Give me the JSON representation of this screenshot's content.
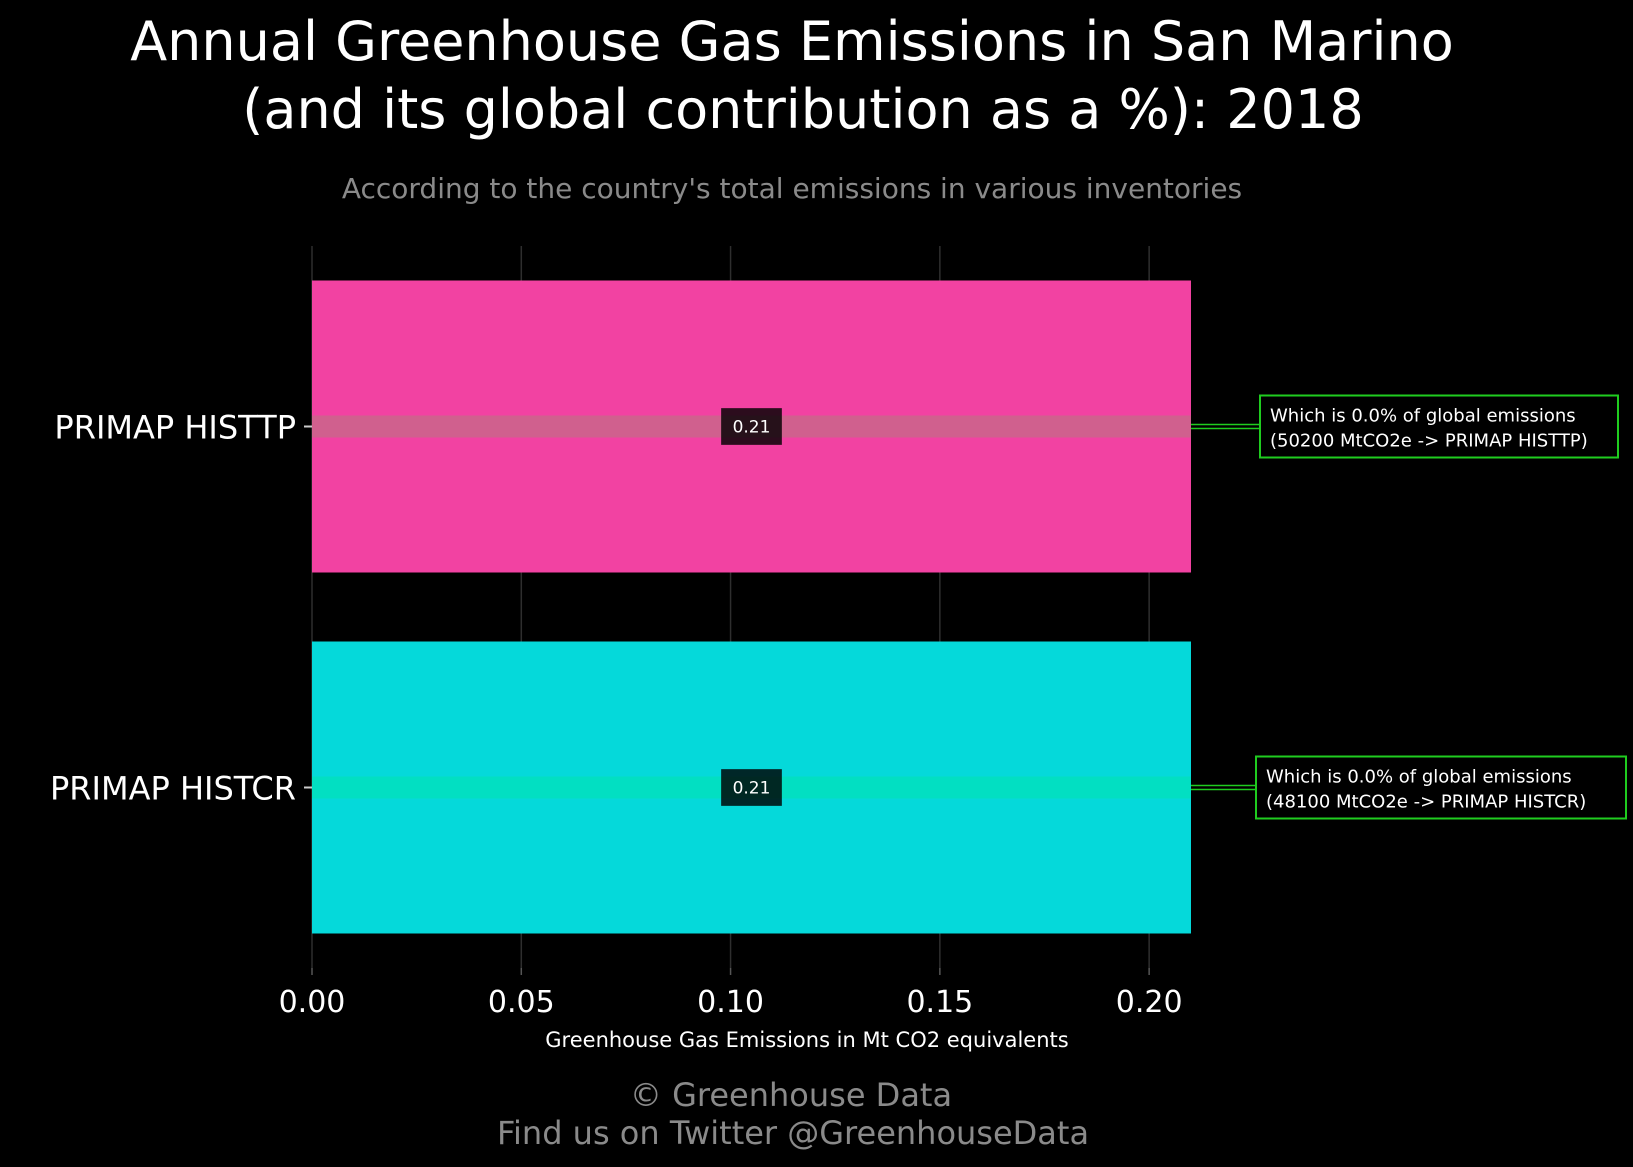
{
  "chart_data": {
    "type": "bar",
    "orientation": "horizontal",
    "title_line1": "Annual Greenhouse Gas Emissions in San Marino",
    "title_line2": "(and its global contribution as a %): 2018",
    "subtitle": "According to the country's total emissions in various inventories",
    "categories": [
      "PRIMAP HISTTP",
      "PRIMAP HISTCR"
    ],
    "values": [
      0.21,
      0.21
    ],
    "value_labels": [
      "0.21",
      "0.21"
    ],
    "bar_colors": [
      "#f242a2",
      "#05d9da"
    ],
    "stripe_colors": [
      "#d0608e",
      "#02dfc2"
    ],
    "xlabel": "Greenhouse Gas Emissions in Mt CO2 equivalents",
    "xlim": [
      0,
      0.21
    ],
    "xticks": [
      0.0,
      0.05,
      0.1,
      0.15,
      0.2
    ],
    "xtick_labels": [
      "0.00",
      "0.05",
      "0.10",
      "0.15",
      "0.20"
    ],
    "grid": true,
    "annotations": [
      {
        "line1": "Which is 0.0% of global emissions",
        "line2": "(50200 MtCO2e -> PRIMAP HISTTP)"
      },
      {
        "line1": "Which is 0.0% of global emissions",
        "line2": "(48100 MtCO2e -> PRIMAP HISTCR)"
      }
    ],
    "annotation_color": "#1fcc1f",
    "background": "#000000"
  },
  "footer": {
    "line1": "© Greenhouse Data",
    "line2": "Find us on Twitter @GreenhouseData"
  }
}
